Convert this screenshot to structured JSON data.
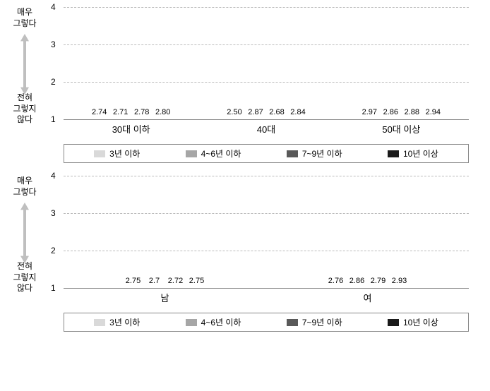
{
  "y_axis": {
    "top_label": "매우\n그렇다",
    "bottom_label": "전혀\n그렇지\n않다",
    "min": 1,
    "max": 4,
    "ticks": [
      1,
      2,
      3,
      4
    ]
  },
  "series": {
    "names": [
      "3년 이하",
      "4~6년 이하",
      "7~9년 이하",
      "10년 이상"
    ],
    "colors": [
      "#d9d9d9",
      "#a6a6a6",
      "#595959",
      "#1a1a1a"
    ]
  },
  "chart1": {
    "type": "bar",
    "groups": [
      "30대 이하",
      "40대",
      "50대 이상"
    ],
    "values": [
      [
        2.74,
        2.71,
        2.78,
        2.8
      ],
      [
        2.5,
        2.87,
        2.68,
        2.84
      ],
      [
        2.97,
        2.86,
        2.88,
        2.94
      ]
    ],
    "labels": [
      [
        "2.74",
        "2.71",
        "2.78",
        "2.80"
      ],
      [
        "2.50",
        "2.87",
        "2.68",
        "2.84"
      ],
      [
        "2.97",
        "2.86",
        "2.88",
        "2.94"
      ]
    ]
  },
  "chart2": {
    "type": "bar",
    "groups": [
      "남",
      "여"
    ],
    "values": [
      [
        2.75,
        2.7,
        2.72,
        2.75
      ],
      [
        2.76,
        2.86,
        2.79,
        2.93
      ]
    ],
    "labels": [
      [
        "2.75",
        "2.7",
        "2.72",
        "2.75"
      ],
      [
        "2.76",
        "2.86",
        "2.79",
        "2.93"
      ]
    ]
  },
  "styling": {
    "background_color": "#ffffff",
    "grid_color": "#bbbbbb",
    "axis_color": "#888888",
    "text_color": "#333333",
    "label_fontsize": 11,
    "tick_fontsize": 12,
    "arrow_color": "#bfbfbf"
  }
}
